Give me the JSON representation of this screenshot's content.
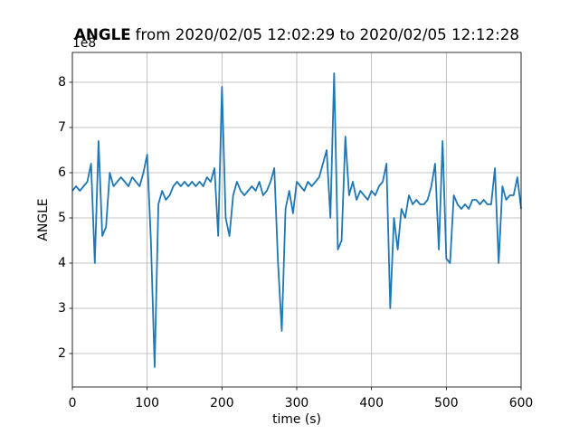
{
  "chart_data": {
    "type": "line",
    "title": [
      "ANGLE",
      "from 2020/02/05 12:02:29 to 2020/02/05 12:12:28"
    ],
    "y_offset": "1e8",
    "xlabel": "time (s)",
    "ylabel": "ANGLE",
    "xlim": [
      0,
      600
    ],
    "ylim": [
      1.26,
      8.66
    ],
    "xticks": [
      0,
      100,
      200,
      300,
      400,
      500,
      600
    ],
    "yticks": [
      2,
      3,
      4,
      5,
      6,
      7,
      8
    ],
    "grid": true,
    "x": [
      0,
      5,
      10,
      15,
      20,
      25,
      30,
      35,
      40,
      45,
      50,
      55,
      60,
      65,
      70,
      75,
      80,
      85,
      90,
      95,
      100,
      105,
      110,
      115,
      120,
      125,
      130,
      135,
      140,
      145,
      150,
      155,
      160,
      165,
      170,
      175,
      180,
      185,
      190,
      195,
      200,
      205,
      210,
      215,
      220,
      225,
      230,
      235,
      240,
      245,
      250,
      255,
      260,
      265,
      270,
      275,
      280,
      285,
      290,
      295,
      300,
      305,
      310,
      315,
      320,
      325,
      330,
      335,
      340,
      345,
      350,
      355,
      360,
      365,
      370,
      375,
      380,
      385,
      390,
      395,
      400,
      405,
      410,
      415,
      420,
      425,
      430,
      435,
      440,
      445,
      450,
      455,
      460,
      465,
      470,
      475,
      480,
      485,
      490,
      495,
      500,
      505,
      510,
      515,
      520,
      525,
      530,
      535,
      540,
      545,
      550,
      555,
      560,
      565,
      570,
      575,
      580,
      585,
      590,
      595,
      600
    ],
    "series": [
      {
        "name": "ANGLE",
        "color": "#1f77b4",
        "values": [
          5.6,
          5.7,
          5.6,
          5.7,
          5.8,
          6.2,
          4.0,
          6.7,
          4.6,
          4.8,
          6.0,
          5.7,
          5.8,
          5.9,
          5.8,
          5.7,
          5.9,
          5.8,
          5.7,
          6.0,
          6.4,
          4.5,
          1.7,
          5.3,
          5.6,
          5.4,
          5.5,
          5.7,
          5.8,
          5.7,
          5.8,
          5.7,
          5.8,
          5.7,
          5.8,
          5.7,
          5.9,
          5.8,
          6.1,
          4.6,
          7.9,
          5.0,
          4.6,
          5.5,
          5.8,
          5.6,
          5.5,
          5.6,
          5.7,
          5.6,
          5.8,
          5.5,
          5.6,
          5.8,
          6.1,
          4.0,
          2.5,
          5.2,
          5.6,
          5.1,
          5.8,
          5.7,
          5.6,
          5.8,
          5.7,
          5.8,
          5.9,
          6.2,
          6.5,
          5.0,
          8.2,
          4.3,
          4.5,
          6.8,
          5.5,
          5.8,
          5.4,
          5.6,
          5.5,
          5.4,
          5.6,
          5.5,
          5.7,
          5.8,
          6.2,
          3.0,
          5.0,
          4.3,
          5.2,
          5.0,
          5.5,
          5.3,
          5.4,
          5.3,
          5.3,
          5.4,
          5.7,
          6.2,
          4.3,
          6.7,
          4.1,
          4.0,
          5.5,
          5.3,
          5.2,
          5.3,
          5.2,
          5.4,
          5.4,
          5.3,
          5.4,
          5.3,
          5.3,
          6.1,
          4.0,
          5.7,
          5.4,
          5.5,
          5.5,
          5.9,
          5.2
        ]
      }
    ]
  }
}
